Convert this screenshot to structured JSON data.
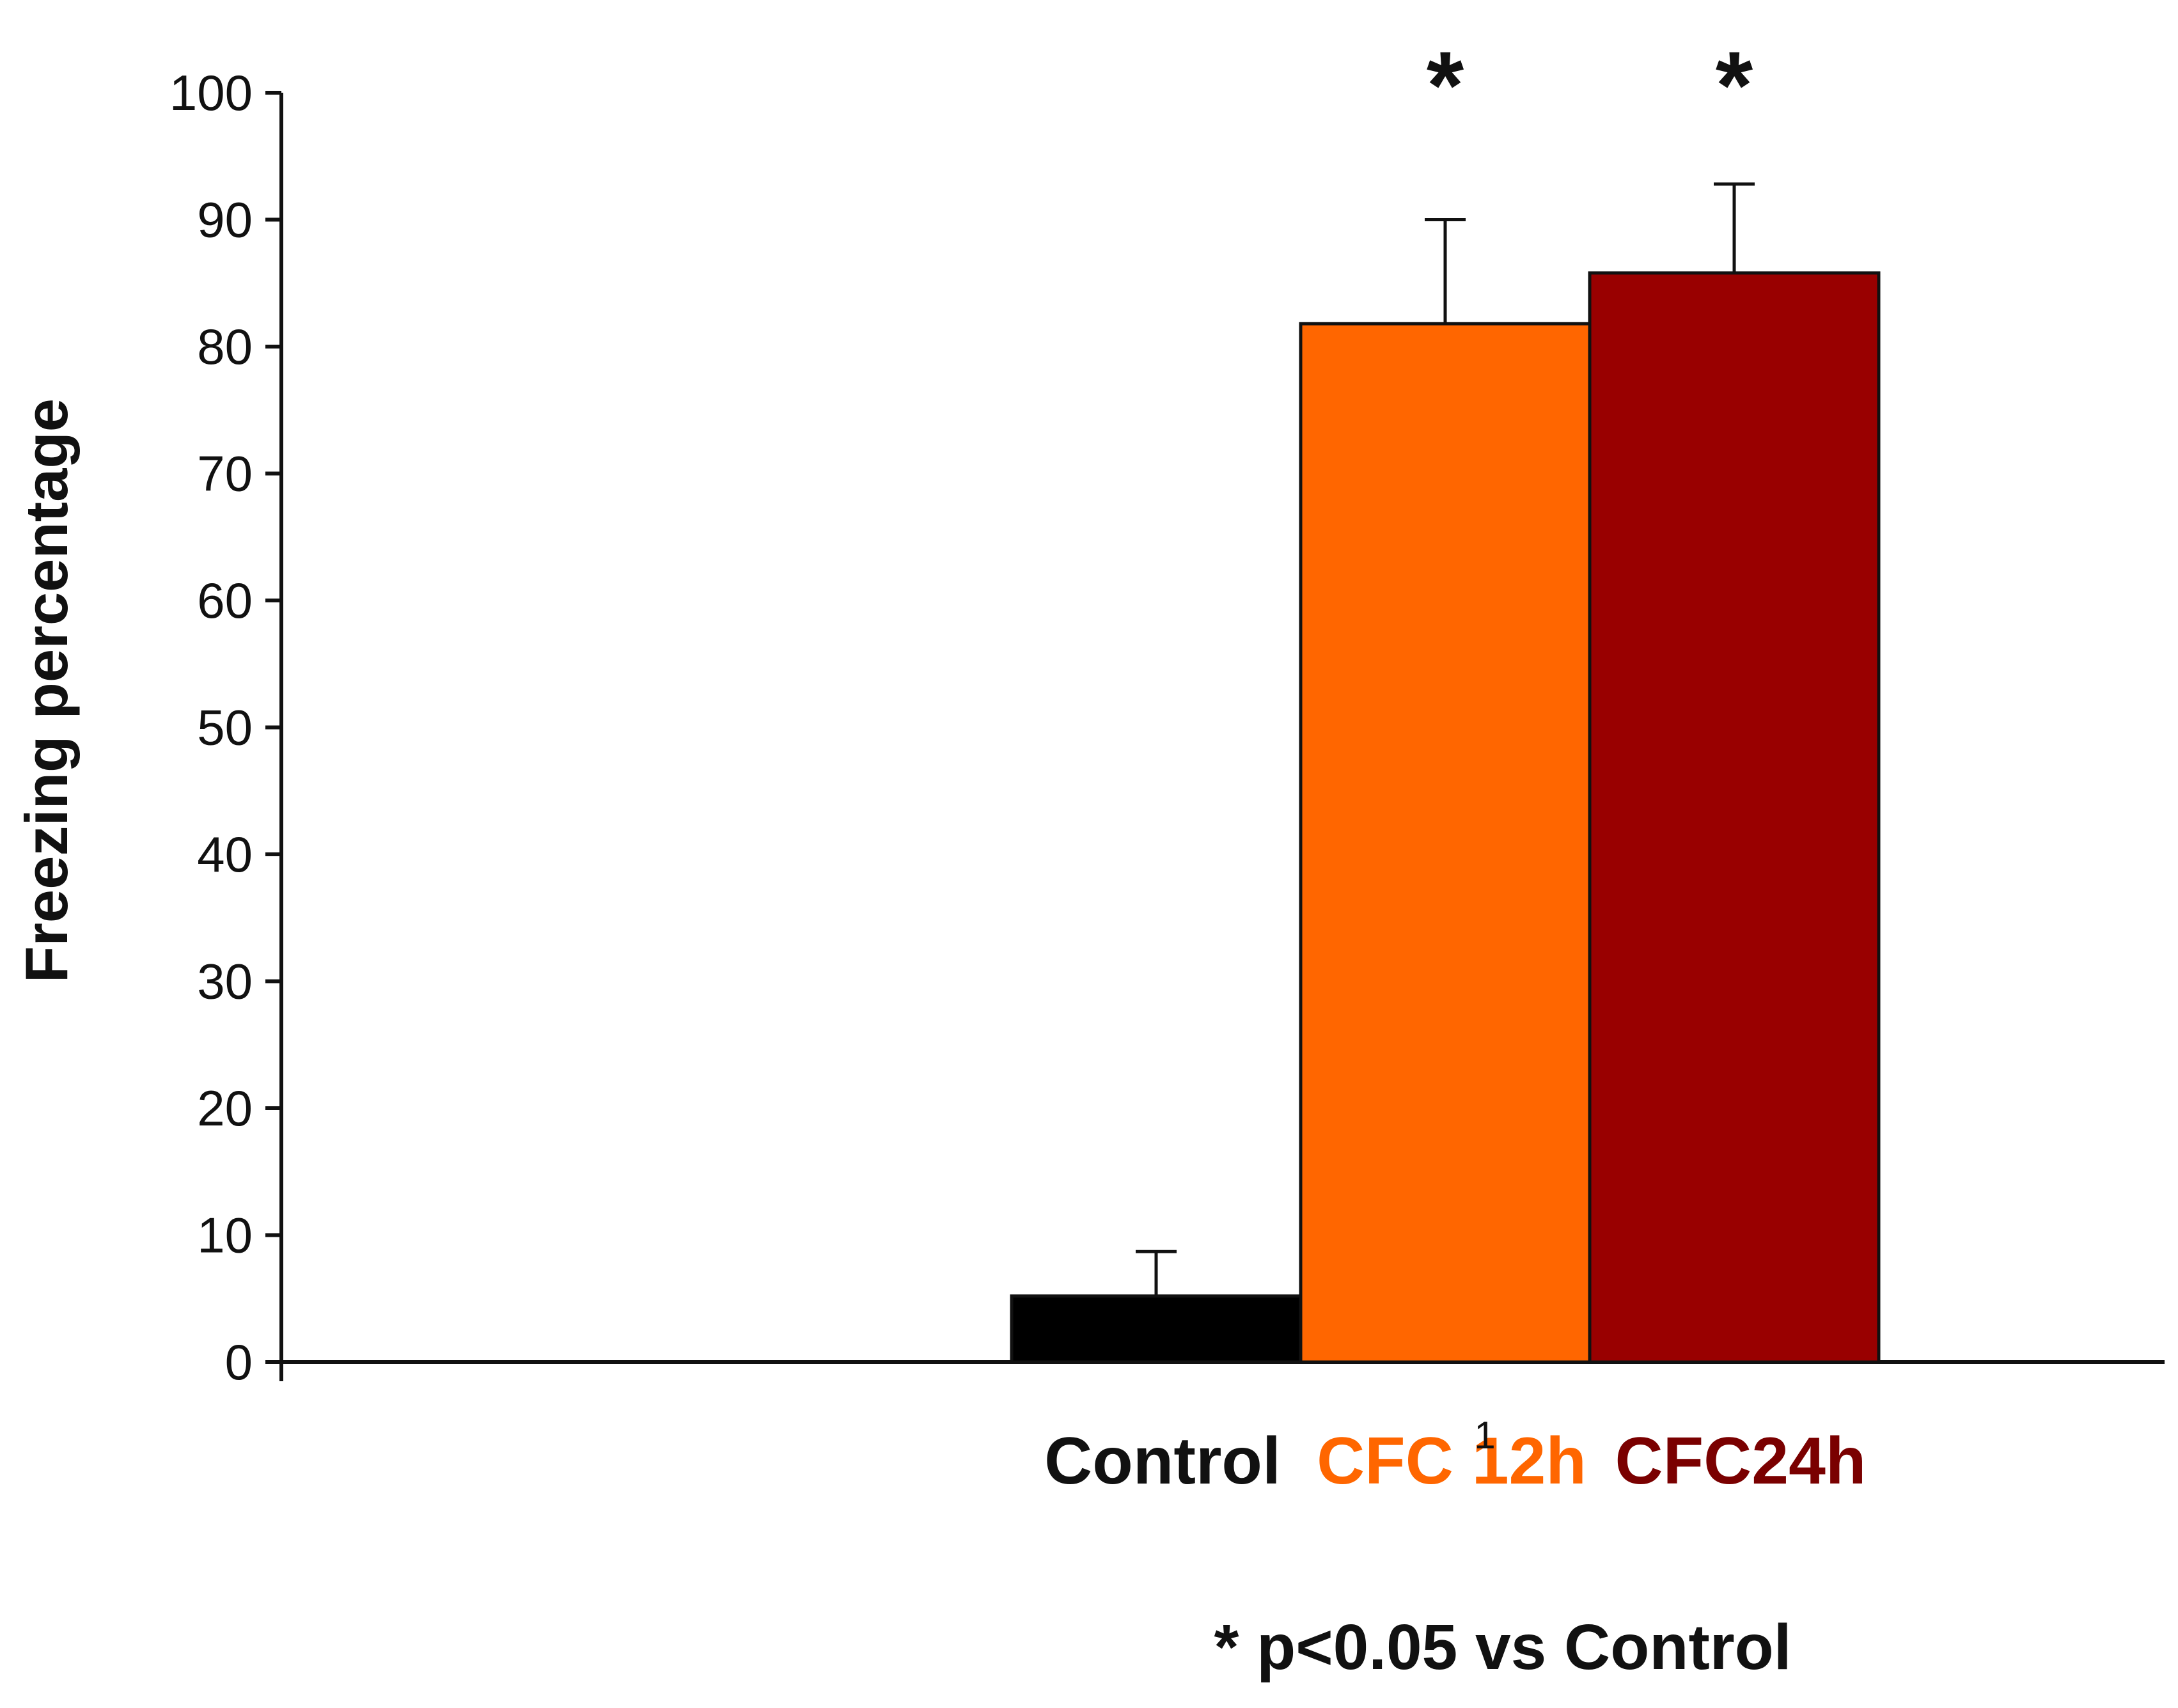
{
  "chart_data": {
    "type": "bar",
    "categories": [
      "Control",
      "CFC 12h",
      "CFC24h"
    ],
    "values": [
      5.2,
      81.8,
      85.8
    ],
    "errors": [
      3.5,
      8.2,
      7.0
    ],
    "colors": [
      "#000000",
      "#ff6600",
      "#990000"
    ],
    "label_colors": [
      "#111111",
      "#ff6600",
      "#7a0000"
    ],
    "significance": [
      "",
      "*",
      "*"
    ],
    "ylabel": "Freezing percentage",
    "xlabel": "",
    "ylim": [
      0,
      100
    ],
    "yticks": [
      "0",
      "10",
      "20",
      "30",
      "40",
      "50",
      "60",
      "70",
      "80",
      "90",
      "100"
    ],
    "x_tick_label": "1",
    "footnote": "* p<0.05 vs Control",
    "legend": "none",
    "grid": false
  }
}
